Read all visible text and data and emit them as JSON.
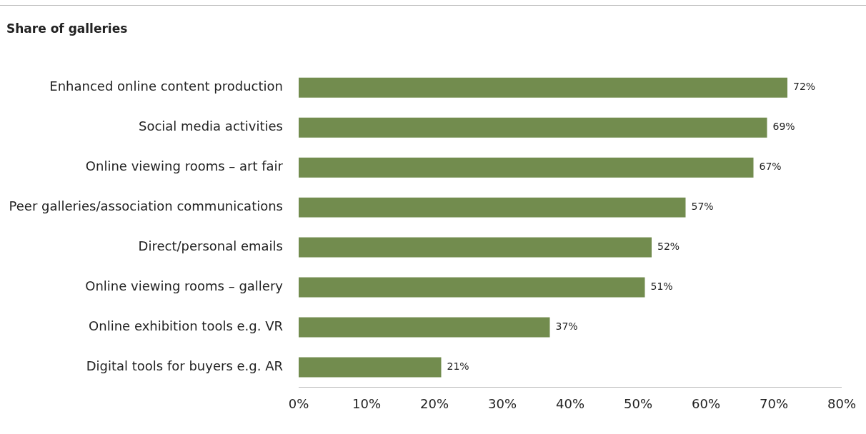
{
  "chart_data": {
    "type": "bar",
    "orientation": "horizontal",
    "title": "Share of galleries",
    "categories": [
      "Enhanced online content production",
      "Social media activities",
      "Online viewing rooms – art fair",
      "Peer galleries/association communications",
      "Direct/personal emails",
      "Online viewing rooms – gallery",
      "Online exhibition tools e.g. VR",
      "Digital tools for buyers e.g. AR"
    ],
    "values": [
      72,
      69,
      67,
      57,
      52,
      51,
      37,
      21
    ],
    "value_labels": [
      "72%",
      "69%",
      "67%",
      "57%",
      "52%",
      "51%",
      "37%",
      "21%"
    ],
    "color": "#728c4e",
    "xlim": [
      0,
      80
    ],
    "xticks": [
      {
        "value": 0,
        "label": "0%"
      },
      {
        "value": 10,
        "label": "10%"
      },
      {
        "value": 20,
        "label": "20%"
      },
      {
        "value": 30,
        "label": "30%"
      },
      {
        "value": 40,
        "label": "40%"
      },
      {
        "value": 50,
        "label": "50%"
      },
      {
        "value": 60,
        "label": "60%"
      },
      {
        "value": 70,
        "label": "70%"
      },
      {
        "value": 80,
        "label": "80%"
      }
    ]
  }
}
